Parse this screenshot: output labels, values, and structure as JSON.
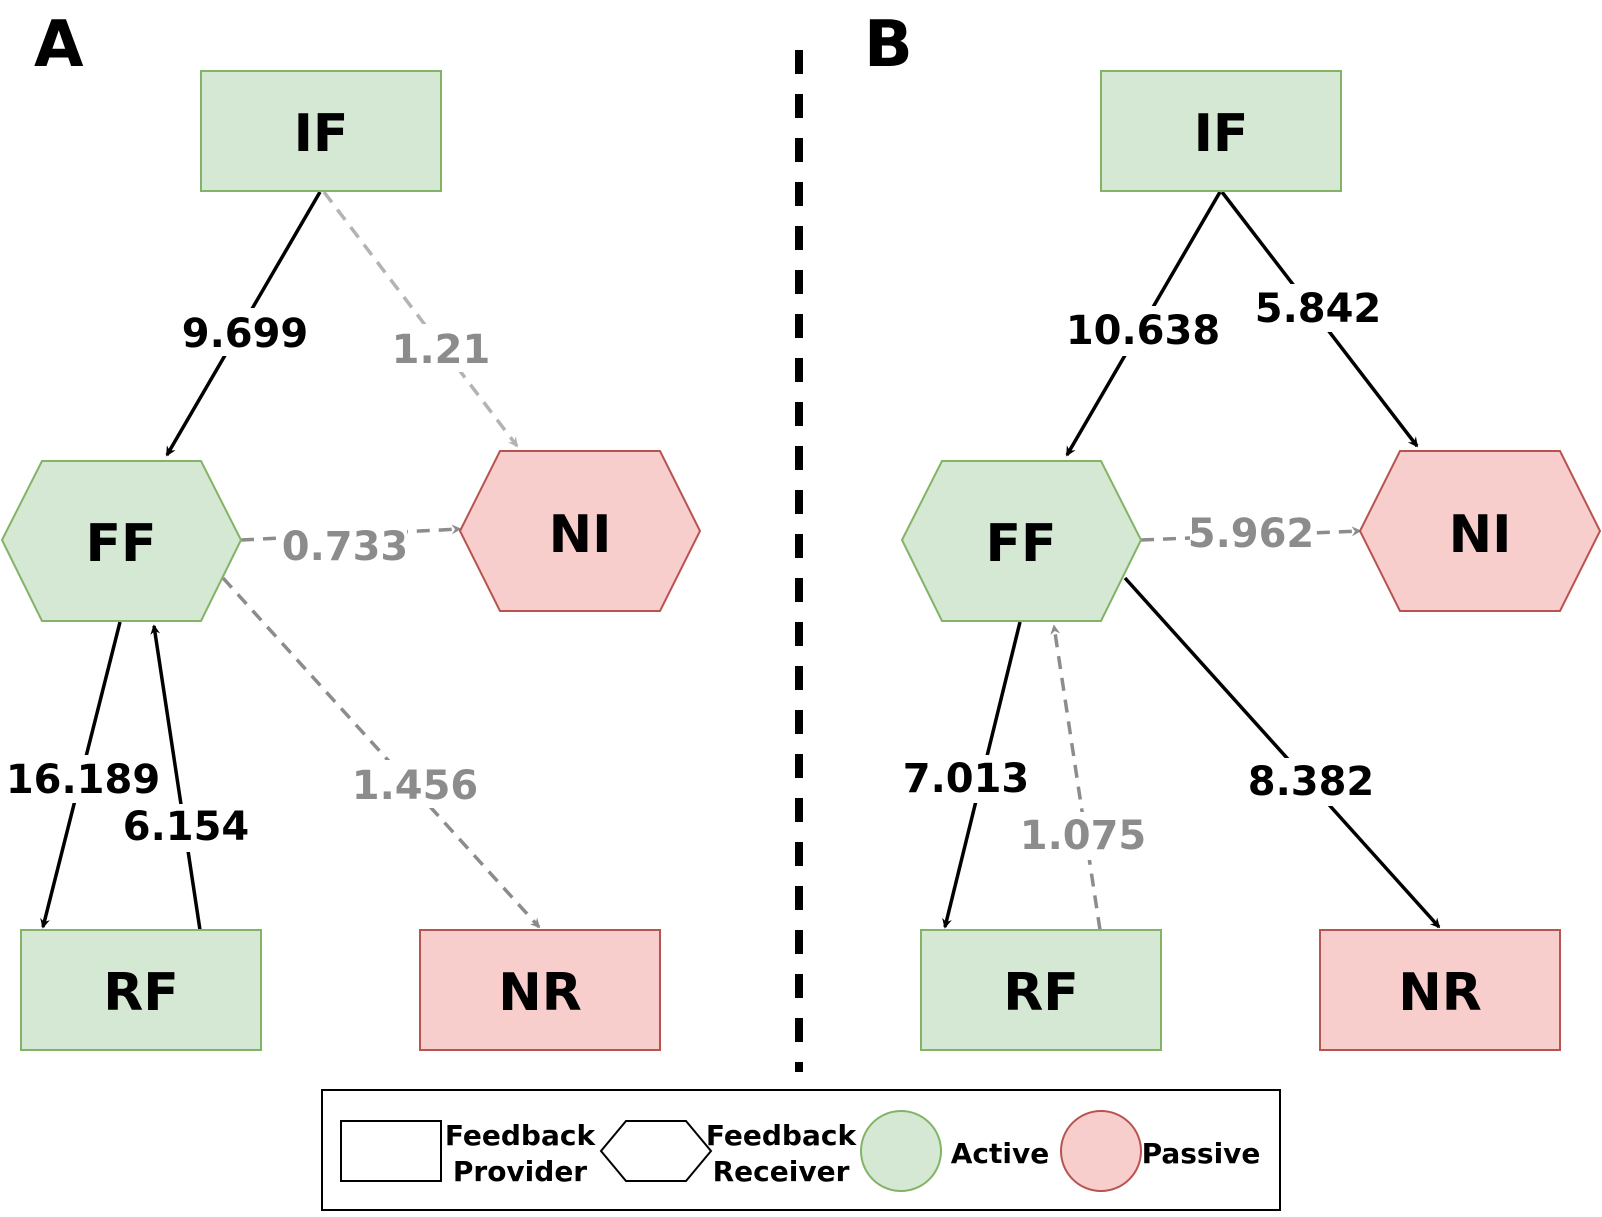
{
  "colors": {
    "active_fill": "#d5e8d4",
    "active_stroke": "#82b366",
    "passive_fill": "#f8cecc",
    "passive_stroke": "#b85450",
    "solid_edge": "#000000",
    "dashed_edge": "#8c8c8c",
    "dashed_edge_light": "#b3b3b3"
  },
  "panels": [
    {
      "letter": "A",
      "nodes": {
        "if": "IF",
        "ff": "FF",
        "ni": "NI",
        "rf": "RF",
        "nr": "NR"
      },
      "edges": {
        "if_ff": "9.699",
        "if_ni": "1.21",
        "ff_ni": "0.733",
        "ff_nr": "1.456",
        "ff_rf": "16.189",
        "rf_ff": "6.154"
      }
    },
    {
      "letter": "B",
      "nodes": {
        "if": "IF",
        "ff": "FF",
        "ni": "NI",
        "rf": "RF",
        "nr": "NR"
      },
      "edges": {
        "if_ff": "10.638",
        "if_ni": "5.842",
        "ff_ni": "5.962",
        "ff_nr": "8.382",
        "ff_rf": "7.013",
        "rf_ff": "1.075"
      }
    }
  ],
  "legend": {
    "provider_line1": "Feedback",
    "provider_line2": "Provider",
    "receiver_line1": "Feedback",
    "receiver_line2": "Receiver",
    "active": "Active",
    "passive": "Passive"
  }
}
